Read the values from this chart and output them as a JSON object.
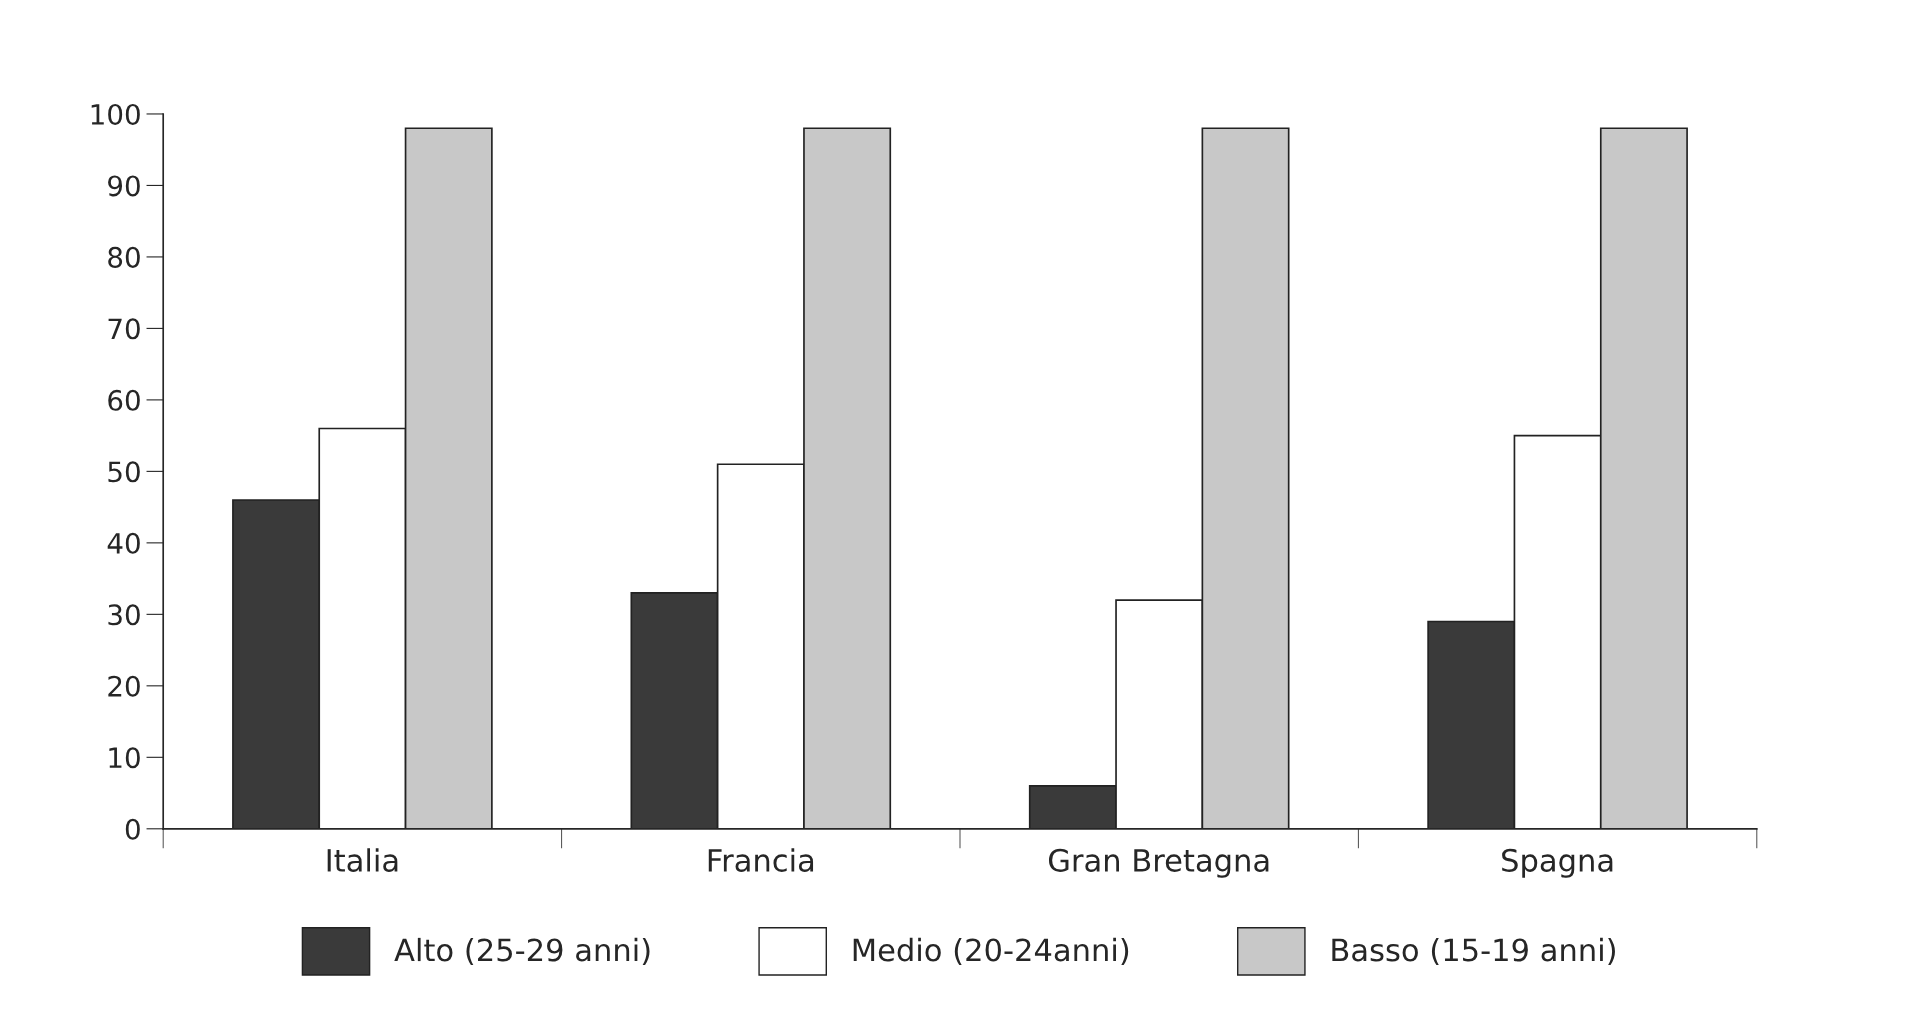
{
  "chart_data": {
    "type": "bar",
    "categories": [
      "Italia",
      "Francia",
      "Gran Bretagna",
      "Spagna"
    ],
    "series": [
      {
        "name": "Alto (25-29 anni)",
        "color": "#3a3a3a",
        "values": [
          46,
          33,
          6,
          29
        ]
      },
      {
        "name": "Medio (20-24anni)",
        "color": "#ffffff",
        "values": [
          56,
          51,
          32,
          55
        ]
      },
      {
        "name": "Basso (15-19 anni)",
        "color": "#c8c8c8",
        "values": [
          98,
          98,
          98,
          98
        ]
      }
    ],
    "ylim": [
      0,
      100
    ],
    "yticks": [
      0,
      10,
      20,
      30,
      40,
      50,
      60,
      70,
      80,
      90,
      100
    ],
    "grid": false,
    "legend": "bottom"
  }
}
